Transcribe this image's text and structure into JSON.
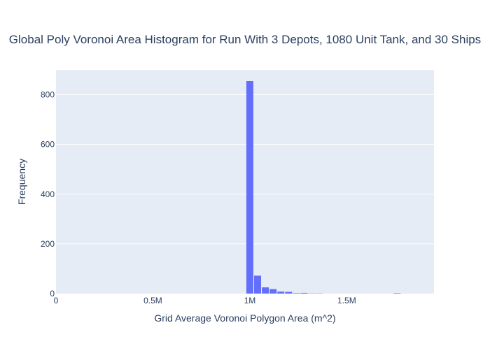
{
  "chart_data": {
    "type": "bar",
    "title": "Global Poly Voronoi Area Histogram for Run With 3 Depots, 1080 Unit Tank, and 30 Ships",
    "xlabel": "Grid Average Voronoi Polygon Area (m^2)",
    "ylabel": "Frequency",
    "xlim": [
      0,
      1950000
    ],
    "ylim": [
      0,
      900
    ],
    "x_ticks": [
      {
        "value": 0,
        "label": "0"
      },
      {
        "value": 500000,
        "label": "0.5M"
      },
      {
        "value": 1000000,
        "label": "1M"
      },
      {
        "value": 1500000,
        "label": "1.5M"
      }
    ],
    "y_ticks": [
      {
        "value": 0,
        "label": "0"
      },
      {
        "value": 200,
        "label": "200"
      },
      {
        "value": 400,
        "label": "400"
      },
      {
        "value": 600,
        "label": "600"
      },
      {
        "value": 800,
        "label": "800"
      }
    ],
    "bin_width": 40000,
    "bins": [
      {
        "x0": 980000,
        "count": 855
      },
      {
        "x0": 1020000,
        "count": 72
      },
      {
        "x0": 1060000,
        "count": 25
      },
      {
        "x0": 1100000,
        "count": 18
      },
      {
        "x0": 1140000,
        "count": 8
      },
      {
        "x0": 1180000,
        "count": 7
      },
      {
        "x0": 1220000,
        "count": 2
      },
      {
        "x0": 1260000,
        "count": 3
      },
      {
        "x0": 1300000,
        "count": 1
      },
      {
        "x0": 1340000,
        "count": 1
      },
      {
        "x0": 1740000,
        "count": 2
      }
    ],
    "grid": true,
    "legend": "none",
    "colors": {
      "bar": "#636efa",
      "plot_background": "#e5ecf6",
      "gridline": "#ffffff",
      "text": "#2a3f5f",
      "tick_text": "#2a3f5f"
    }
  }
}
